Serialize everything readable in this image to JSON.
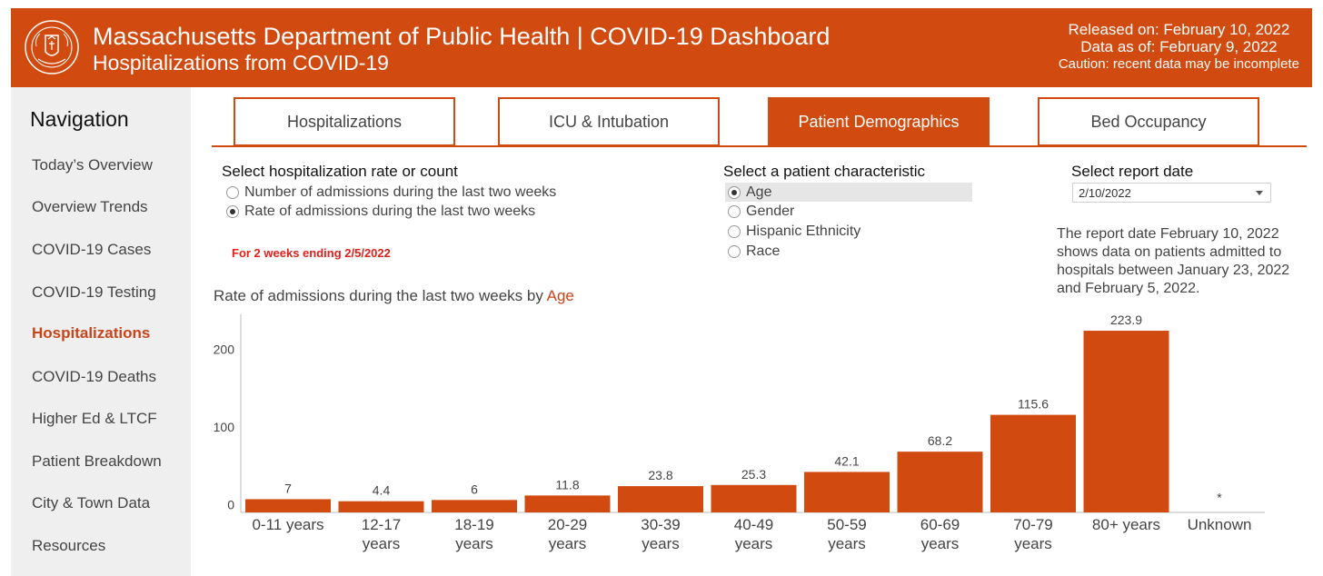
{
  "header": {
    "title": "Massachusetts Department of Public Health  |  COVID-19 Dashboard",
    "subtitle": "Hospitalizations from COVID-19",
    "released": "Released on: February 10, 2022",
    "data_as_of": "Data as of: February 9, 2022",
    "caution": "Caution: recent data may be incomplete",
    "brand_color": "#d14a0f",
    "logo_icon": "massachusetts-seal-icon"
  },
  "sidebar": {
    "title": "Navigation",
    "items": [
      {
        "label": "Today’s Overview",
        "active": false
      },
      {
        "label": "Overview Trends",
        "active": false
      },
      {
        "label": "COVID-19 Cases",
        "active": false
      },
      {
        "label": "COVID-19 Testing",
        "active": false
      },
      {
        "label": "Hospitalizations",
        "active": true
      },
      {
        "label": "COVID-19 Deaths",
        "active": false
      },
      {
        "label": "Higher Ed & LTCF",
        "active": false
      },
      {
        "label": "Patient Breakdown",
        "active": false
      },
      {
        "label": "City & Town Data",
        "active": false
      },
      {
        "label": "Resources",
        "active": false
      }
    ]
  },
  "tabs": [
    {
      "label": "Hospitalizations",
      "active": false
    },
    {
      "label": "ICU & Intubation",
      "active": false
    },
    {
      "label": "Patient Demographics",
      "active": true
    },
    {
      "label": "Bed Occupancy",
      "active": false
    }
  ],
  "rate_control": {
    "title": "Select hospitalization rate or count",
    "options": [
      {
        "label": "Number of admissions during the last two weeks",
        "selected": false
      },
      {
        "label": "Rate of admissions during the last two weeks",
        "selected": true
      }
    ],
    "note": "For 2 weeks ending 2/5/2022"
  },
  "characteristic_control": {
    "title": "Select a patient characteristic",
    "options": [
      {
        "label": "Age",
        "selected": true
      },
      {
        "label": "Gender",
        "selected": false
      },
      {
        "label": "Hispanic Ethnicity",
        "selected": false
      },
      {
        "label": "Race",
        "selected": false
      }
    ]
  },
  "report_date": {
    "title": "Select report date",
    "value": "2/10/2022",
    "description": "The report date February 10, 2022 shows data on patients admitted to hospitals between January 23, 2022 and February 5, 2022."
  },
  "chart_title": {
    "prefix": "Rate of admissions during the last two weeks by ",
    "highlight": "Age"
  },
  "chart_data": {
    "type": "bar",
    "categories": [
      [
        "0-11 years"
      ],
      [
        "12-17",
        "years"
      ],
      [
        "18-19",
        "years"
      ],
      [
        "20-29",
        "years"
      ],
      [
        "30-39",
        "years"
      ],
      [
        "40-49",
        "years"
      ],
      [
        "50-59",
        "years"
      ],
      [
        "60-69",
        "years"
      ],
      [
        "70-79",
        "years"
      ],
      [
        "80+ years"
      ],
      [
        "Unknown"
      ]
    ],
    "values": [
      7,
      4.4,
      6,
      11.8,
      23.8,
      25.3,
      42.1,
      68.2,
      115.6,
      223.9,
      null
    ],
    "data_labels": [
      "7",
      "4.4",
      "6",
      "11.8",
      "23.8",
      "25.3",
      "42.1",
      "68.2",
      "115.6",
      "223.9",
      "*"
    ],
    "y_ticks": [
      0,
      100,
      200
    ],
    "ylim": [
      -10,
      245
    ],
    "bar_color": "#d14a0f",
    "grid": false
  }
}
